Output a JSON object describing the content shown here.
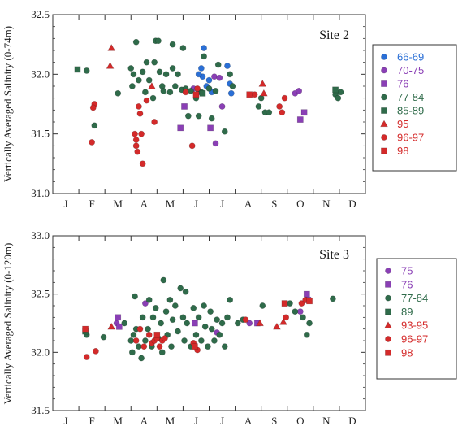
{
  "chart_data": [
    {
      "type": "scatter",
      "title": "Site 2",
      "ylabel": "Vertically Averaged Salinity (0-74m)",
      "xlabel": "",
      "x_tick_labels": [
        "J",
        "F",
        "M",
        "A",
        "M",
        "J",
        "J",
        "A",
        "S",
        "O",
        "N",
        "D"
      ],
      "x_range": [
        0,
        12
      ],
      "ylim": [
        31.0,
        32.5
      ],
      "y_ticks": [
        "31.0",
        "31.5",
        "32.0",
        "32.5"
      ],
      "legend_position": "right",
      "series": [
        {
          "name": "66-69",
          "color": "#2a6fd6",
          "marker": "circle",
          "points": [
            [
              5.7,
              32.05
            ],
            [
              5.8,
              32.22
            ],
            [
              5.75,
              31.98
            ],
            [
              5.9,
              31.9
            ],
            [
              6.0,
              31.95
            ],
            [
              6.1,
              31.85
            ],
            [
              6.7,
              32.07
            ],
            [
              6.8,
              31.92
            ],
            [
              6.85,
              31.84
            ],
            [
              5.6,
              32.0
            ]
          ]
        },
        {
          "name": "70-75",
          "color": "#8a3fb5",
          "marker": "circle",
          "points": [
            [
              5.4,
              31.88
            ],
            [
              5.6,
              31.85
            ],
            [
              6.2,
              31.98
            ],
            [
              6.25,
              31.42
            ],
            [
              6.4,
              31.97
            ],
            [
              6.5,
              31.73
            ],
            [
              9.3,
              31.84
            ],
            [
              9.45,
              31.86
            ]
          ]
        },
        {
          "name": "76",
          "color": "#8a3fb5",
          "marker": "square",
          "points": [
            [
              4.9,
              31.55
            ],
            [
              5.05,
              31.73
            ],
            [
              6.05,
              31.55
            ],
            [
              9.5,
              31.62
            ],
            [
              9.65,
              31.68
            ]
          ]
        },
        {
          "name": "77-84",
          "color": "#2f6b4a",
          "marker": "circle",
          "points": [
            [
              1.3,
              32.03
            ],
            [
              1.6,
              31.57
            ],
            [
              2.5,
              31.84
            ],
            [
              3.0,
              32.05
            ],
            [
              3.05,
              31.9
            ],
            [
              3.1,
              32.0
            ],
            [
              3.2,
              32.27
            ],
            [
              3.3,
              31.95
            ],
            [
              3.45,
              32.02
            ],
            [
              3.55,
              31.85
            ],
            [
              3.6,
              32.1
            ],
            [
              3.7,
              31.95
            ],
            [
              3.85,
              31.8
            ],
            [
              3.9,
              32.1
            ],
            [
              3.95,
              32.28
            ],
            [
              4.05,
              32.28
            ],
            [
              4.1,
              32.02
            ],
            [
              4.2,
              31.9
            ],
            [
              4.25,
              31.86
            ],
            [
              4.35,
              32.0
            ],
            [
              4.5,
              31.85
            ],
            [
              4.6,
              32.25
            ],
            [
              4.6,
              32.05
            ],
            [
              4.7,
              31.9
            ],
            [
              4.8,
              32.0
            ],
            [
              4.95,
              31.87
            ],
            [
              5.0,
              32.22
            ],
            [
              5.1,
              31.88
            ],
            [
              5.2,
              31.65
            ],
            [
              5.3,
              31.86
            ],
            [
              5.5,
              31.8
            ],
            [
              5.6,
              31.65
            ],
            [
              5.7,
              31.85
            ],
            [
              5.8,
              32.15
            ],
            [
              6.0,
              31.88
            ],
            [
              6.1,
              31.63
            ],
            [
              6.25,
              31.86
            ],
            [
              6.35,
              32.08
            ],
            [
              6.6,
              31.52
            ],
            [
              6.8,
              32.0
            ],
            [
              6.9,
              31.9
            ],
            [
              7.9,
              31.73
            ],
            [
              8.0,
              31.8
            ],
            [
              8.15,
              31.68
            ],
            [
              8.3,
              31.68
            ],
            [
              10.85,
              31.83
            ],
            [
              10.95,
              31.8
            ],
            [
              11.05,
              31.85
            ]
          ]
        },
        {
          "name": "85-89",
          "color": "#2f6b4a",
          "marker": "square",
          "points": [
            [
              0.95,
              32.04
            ],
            [
              5.75,
              31.84
            ],
            [
              10.85,
              31.87
            ]
          ]
        },
        {
          "name": "95",
          "color": "#d42a2a",
          "marker": "triangle",
          "points": [
            [
              2.25,
              32.22
            ],
            [
              2.2,
              32.07
            ],
            [
              3.8,
              31.9
            ],
            [
              8.05,
              31.92
            ],
            [
              8.1,
              31.84
            ]
          ]
        },
        {
          "name": "96-97",
          "color": "#d42a2a",
          "marker": "circle",
          "points": [
            [
              1.6,
              31.75
            ],
            [
              1.55,
              31.72
            ],
            [
              1.5,
              31.43
            ],
            [
              3.15,
              31.5
            ],
            [
              3.2,
              31.45
            ],
            [
              3.2,
              31.4
            ],
            [
              3.25,
              31.35
            ],
            [
              3.3,
              31.73
            ],
            [
              3.35,
              31.67
            ],
            [
              3.4,
              31.5
            ],
            [
              3.45,
              31.25
            ],
            [
              3.6,
              31.78
            ],
            [
              3.9,
              31.6
            ],
            [
              5.1,
              31.85
            ],
            [
              5.35,
              31.4
            ],
            [
              5.55,
              31.88
            ],
            [
              7.75,
              31.83
            ],
            [
              8.7,
              31.73
            ],
            [
              8.8,
              31.68
            ],
            [
              8.9,
              31.8
            ]
          ]
        },
        {
          "name": "98",
          "color": "#d42a2a",
          "marker": "square",
          "points": [
            [
              5.5,
              31.83
            ],
            [
              7.55,
              31.83
            ]
          ]
        }
      ]
    },
    {
      "type": "scatter",
      "title": "Site 3",
      "ylabel": "Vertically Averaged Salinity (0-120m)",
      "xlabel": "",
      "x_tick_labels": [
        "J",
        "F",
        "M",
        "A",
        "M",
        "J",
        "J",
        "A",
        "S",
        "O",
        "N",
        "D"
      ],
      "x_range": [
        0,
        12
      ],
      "ylim": [
        31.5,
        33.0
      ],
      "y_ticks": [
        "31.5",
        "32.0",
        "32.5",
        "33.0"
      ],
      "legend_position": "right",
      "series": [
        {
          "name": "75",
          "color": "#8a3fb5",
          "marker": "circle",
          "points": [
            [
              2.45,
              32.25
            ],
            [
              3.55,
              32.42
            ],
            [
              6.3,
              32.17
            ],
            [
              7.55,
              32.25
            ],
            [
              9.5,
              32.35
            ]
          ]
        },
        {
          "name": "76",
          "color": "#8a3fb5",
          "marker": "square",
          "points": [
            [
              2.5,
              32.3
            ],
            [
              2.55,
              32.22
            ],
            [
              5.45,
              32.25
            ],
            [
              7.85,
              32.25
            ],
            [
              9.75,
              32.5
            ],
            [
              9.8,
              32.45
            ]
          ]
        },
        {
          "name": "77-84",
          "color": "#2f6b4a",
          "marker": "circle",
          "points": [
            [
              1.3,
              32.15
            ],
            [
              1.95,
              32.13
            ],
            [
              2.75,
              32.25
            ],
            [
              3.0,
              32.1
            ],
            [
              3.05,
              32.0
            ],
            [
              3.1,
              32.15
            ],
            [
              3.15,
              32.48
            ],
            [
              3.2,
              32.2
            ],
            [
              3.3,
              32.05
            ],
            [
              3.4,
              31.95
            ],
            [
              3.45,
              32.3
            ],
            [
              3.55,
              32.1
            ],
            [
              3.65,
              32.2
            ],
            [
              3.7,
              32.45
            ],
            [
              3.8,
              32.05
            ],
            [
              3.85,
              32.3
            ],
            [
              3.95,
              32.38
            ],
            [
              4.05,
              32.12
            ],
            [
              4.15,
              32.25
            ],
            [
              4.2,
              32.0
            ],
            [
              4.25,
              32.62
            ],
            [
              4.35,
              32.35
            ],
            [
              4.4,
              32.15
            ],
            [
              4.5,
              32.45
            ],
            [
              4.55,
              32.05
            ],
            [
              4.6,
              32.28
            ],
            [
              4.7,
              32.4
            ],
            [
              4.8,
              32.18
            ],
            [
              4.9,
              32.55
            ],
            [
              5.0,
              32.3
            ],
            [
              5.05,
              32.1
            ],
            [
              5.1,
              32.52
            ],
            [
              5.15,
              32.25
            ],
            [
              5.3,
              32.05
            ],
            [
              5.4,
              32.38
            ],
            [
              5.5,
              32.15
            ],
            [
              5.6,
              32.3
            ],
            [
              5.7,
              32.1
            ],
            [
              5.8,
              32.4
            ],
            [
              5.85,
              32.22
            ],
            [
              5.95,
              32.05
            ],
            [
              6.05,
              32.35
            ],
            [
              6.1,
              32.2
            ],
            [
              6.2,
              32.1
            ],
            [
              6.3,
              32.28
            ],
            [
              6.4,
              32.15
            ],
            [
              6.5,
              32.25
            ],
            [
              6.6,
              32.05
            ],
            [
              6.7,
              32.3
            ],
            [
              6.8,
              32.45
            ],
            [
              7.1,
              32.25
            ],
            [
              7.3,
              32.28
            ],
            [
              8.05,
              32.4
            ],
            [
              9.1,
              32.42
            ],
            [
              9.3,
              32.35
            ],
            [
              9.6,
              32.3
            ],
            [
              9.75,
              32.15
            ],
            [
              9.85,
              32.25
            ],
            [
              10.75,
              32.46
            ]
          ]
        },
        {
          "name": "89",
          "color": "#2f6b4a",
          "marker": "square",
          "points": [
            [
              1.25,
              32.18
            ]
          ]
        },
        {
          "name": "93-95",
          "color": "#d42a2a",
          "marker": "triangle",
          "points": [
            [
              2.25,
              32.22
            ],
            [
              7.95,
              32.25
            ],
            [
              8.6,
              32.22
            ],
            [
              8.85,
              32.26
            ]
          ]
        },
        {
          "name": "96-97",
          "color": "#d42a2a",
          "marker": "circle",
          "points": [
            [
              1.3,
              31.96
            ],
            [
              1.65,
              32.01
            ],
            [
              3.2,
              32.1
            ],
            [
              3.35,
              32.2
            ],
            [
              3.5,
              32.05
            ],
            [
              3.7,
              32.15
            ],
            [
              3.8,
              32.08
            ],
            [
              3.9,
              32.1
            ],
            [
              4.0,
              32.12
            ],
            [
              4.1,
              32.05
            ],
            [
              4.2,
              32.1
            ],
            [
              4.3,
              32.12
            ],
            [
              5.4,
              32.08
            ],
            [
              5.55,
              32.02
            ],
            [
              7.4,
              32.28
            ],
            [
              8.95,
              32.3
            ],
            [
              9.55,
              32.42
            ],
            [
              9.7,
              32.45
            ]
          ]
        },
        {
          "name": "98",
          "color": "#d42a2a",
          "marker": "square",
          "points": [
            [
              1.25,
              32.2
            ],
            [
              4.0,
              32.15
            ],
            [
              5.45,
              32.05
            ],
            [
              8.9,
              32.42
            ],
            [
              9.85,
              32.44
            ]
          ]
        }
      ]
    }
  ]
}
